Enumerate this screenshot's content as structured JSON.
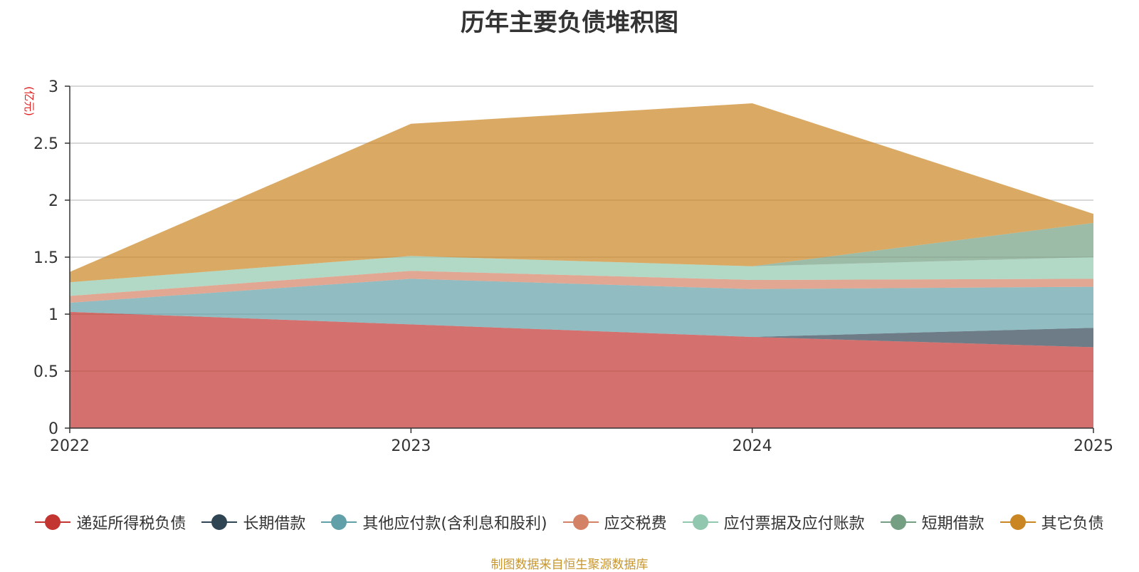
{
  "chart_data": {
    "type": "area",
    "stacked": true,
    "title": "历年主要负债堆积图",
    "ylabel": "(亿元)",
    "xlabel": "",
    "x": [
      "2022",
      "2023",
      "2024",
      "2025"
    ],
    "ylim": [
      0,
      3
    ],
    "yticks": [
      "0",
      "0.5",
      "1",
      "1.5",
      "2",
      "2.5",
      "3"
    ],
    "grid": true,
    "legend_position": "bottom",
    "series": [
      {
        "name": "递延所得税负债",
        "color": "#c23531",
        "values": [
          1.02,
          0.91,
          0.8,
          0.71
        ]
      },
      {
        "name": "长期借款",
        "color": "#2f4554",
        "values": [
          0,
          0,
          0,
          0.17
        ]
      },
      {
        "name": "其他应付款(含利息和股利)",
        "color": "#61a0a8",
        "values": [
          0.08,
          0.4,
          0.42,
          0.36
        ]
      },
      {
        "name": "应交税费",
        "color": "#d48265",
        "values": [
          0.06,
          0.07,
          0.08,
          0.07
        ]
      },
      {
        "name": "应付票据及应付账款",
        "color": "#91c7ae",
        "values": [
          0.12,
          0.13,
          0.12,
          0.19
        ]
      },
      {
        "name": "短期借款",
        "color": "#749f83",
        "values": [
          0,
          0,
          0,
          0.3
        ]
      },
      {
        "name": "其它负债",
        "color": "#ca8622",
        "values": [
          0.09,
          1.16,
          1.43,
          0.08
        ]
      }
    ]
  },
  "source_note": "制图数据来自恒生聚源数据库"
}
